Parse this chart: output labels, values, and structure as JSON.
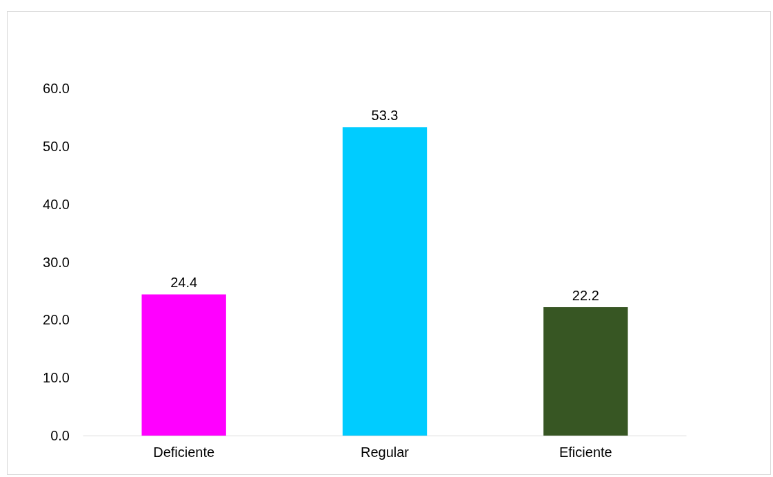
{
  "chart_data": {
    "type": "bar",
    "categories": [
      "Deficiente",
      "Regular",
      "Eficiente"
    ],
    "values": [
      24.4,
      53.3,
      22.2
    ],
    "colors": [
      "#ff00ff",
      "#00ccff",
      "#375623"
    ],
    "ylim": [
      0,
      60
    ],
    "yticks": [
      {
        "value": 0,
        "label": "0.0"
      },
      {
        "value": 10,
        "label": "10.0"
      },
      {
        "value": 20,
        "label": "20.0"
      },
      {
        "value": 30,
        "label": "30.0"
      },
      {
        "value": 40,
        "label": "40.0"
      },
      {
        "value": 50,
        "label": "50.0"
      },
      {
        "value": 60,
        "label": "60.0"
      }
    ],
    "data_labels": true,
    "grid": false
  }
}
